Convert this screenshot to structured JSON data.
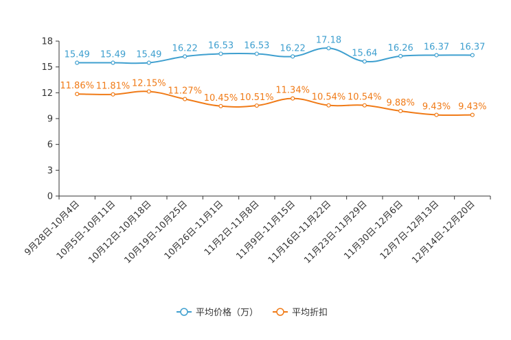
{
  "chart_data": {
    "type": "line",
    "title": "",
    "xlabel": "",
    "ylabel": "",
    "ylim": [
      0,
      18
    ],
    "yticks": [
      0,
      3,
      6,
      9,
      12,
      15,
      18
    ],
    "categories": [
      "9月28日-10月4日",
      "10月5日-10月11日",
      "10月12日-10月18日",
      "10月19日-10月25日",
      "10月26日-11月1日",
      "11月2日-11月8日",
      "11月9日-11月15日",
      "11月16日-11月22日",
      "11月23日-11月29日",
      "11月30日-12月6日",
      "12月7日-12月13日",
      "12月14日-12月20日"
    ],
    "series": [
      {
        "name": "平均价格（万）",
        "color": "#3e9fcf",
        "values": [
          15.49,
          15.49,
          15.49,
          16.22,
          16.53,
          16.53,
          16.22,
          17.18,
          15.64,
          16.26,
          16.37,
          16.37
        ],
        "labels": [
          "15.49",
          "15.49",
          "15.49",
          "16.22",
          "16.53",
          "16.53",
          "16.22",
          "17.18",
          "15.64",
          "16.26",
          "16.37",
          "16.37"
        ]
      },
      {
        "name": "平均折扣",
        "color": "#f07a16",
        "values": [
          11.86,
          11.81,
          12.15,
          11.27,
          10.45,
          10.51,
          11.34,
          10.54,
          10.54,
          9.88,
          9.43,
          9.43
        ],
        "labels": [
          "11.86%",
          "11.81%",
          "12.15%",
          "11.27%",
          "10.45%",
          "10.51%",
          "11.34%",
          "10.54%",
          "10.54%",
          "9.88%",
          "9.43%",
          "9.43%"
        ]
      }
    ],
    "legend_position": "bottom-center"
  }
}
